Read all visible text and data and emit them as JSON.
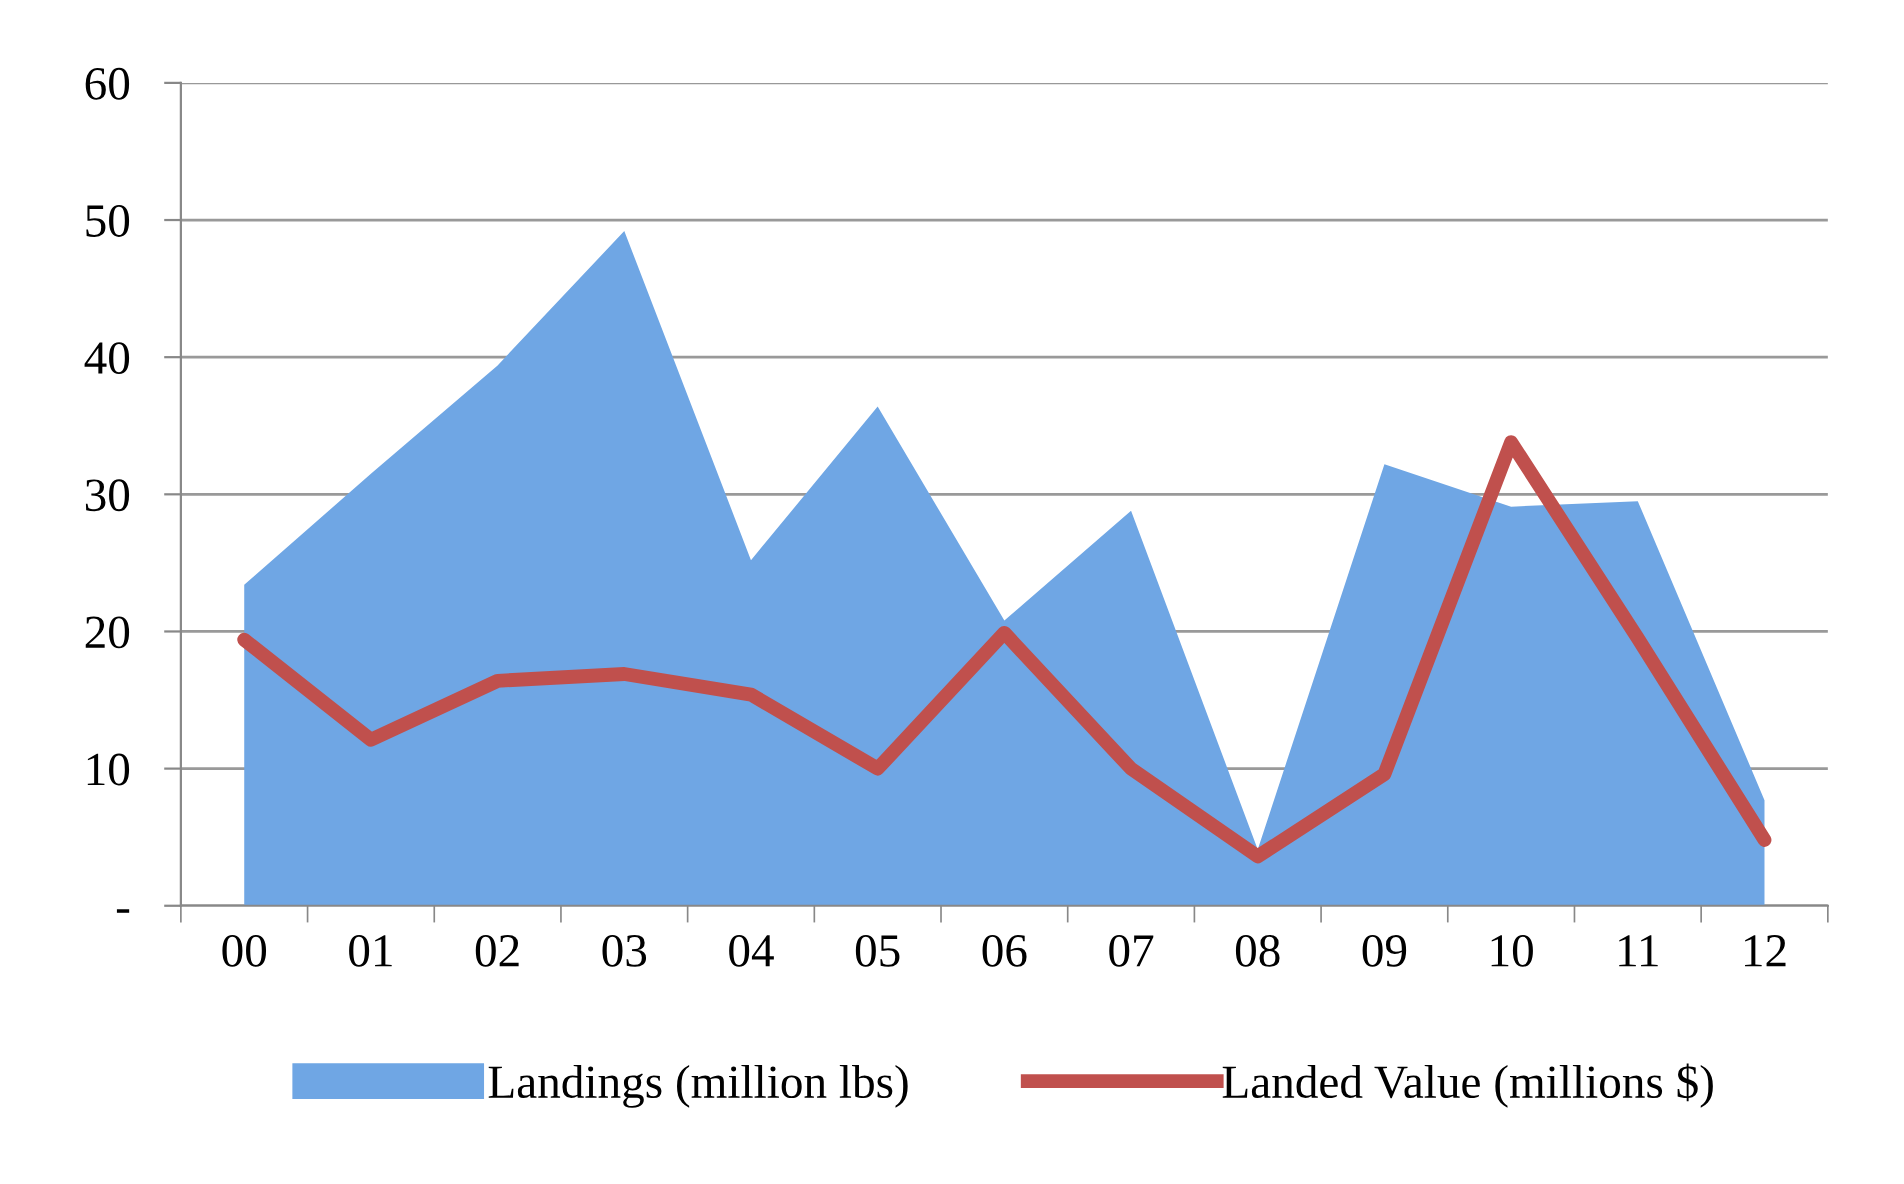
{
  "chart_data": {
    "type": "area",
    "categories": [
      "00",
      "01",
      "02",
      "03",
      "04",
      "05",
      "06",
      "07",
      "08",
      "09",
      "10",
      "11",
      "12"
    ],
    "series": [
      {
        "name": "Landings (million lbs)",
        "color": "#6fa6e4",
        "values": [
          23.4,
          31.5,
          39.4,
          49.2,
          25.2,
          36.4,
          20.8,
          28.8,
          4.1,
          32.2,
          29.1,
          29.5,
          7.7
        ]
      },
      {
        "name": "Landed Value (millions $)",
        "type": "line",
        "color": "#c0504d",
        "values": [
          19.4,
          12.1,
          16.4,
          16.9,
          15.4,
          10.0,
          19.9,
          10.0,
          3.6,
          9.6,
          33.8,
          19.5,
          4.8
        ]
      }
    ],
    "ylim": [
      0,
      60
    ],
    "yticks": [
      {
        "value": 0,
        "label": "-"
      },
      10,
      20,
      30,
      40,
      50,
      60
    ],
    "grid": "y",
    "legend": "bottom",
    "line_style": "solid",
    "marker": "none"
  }
}
